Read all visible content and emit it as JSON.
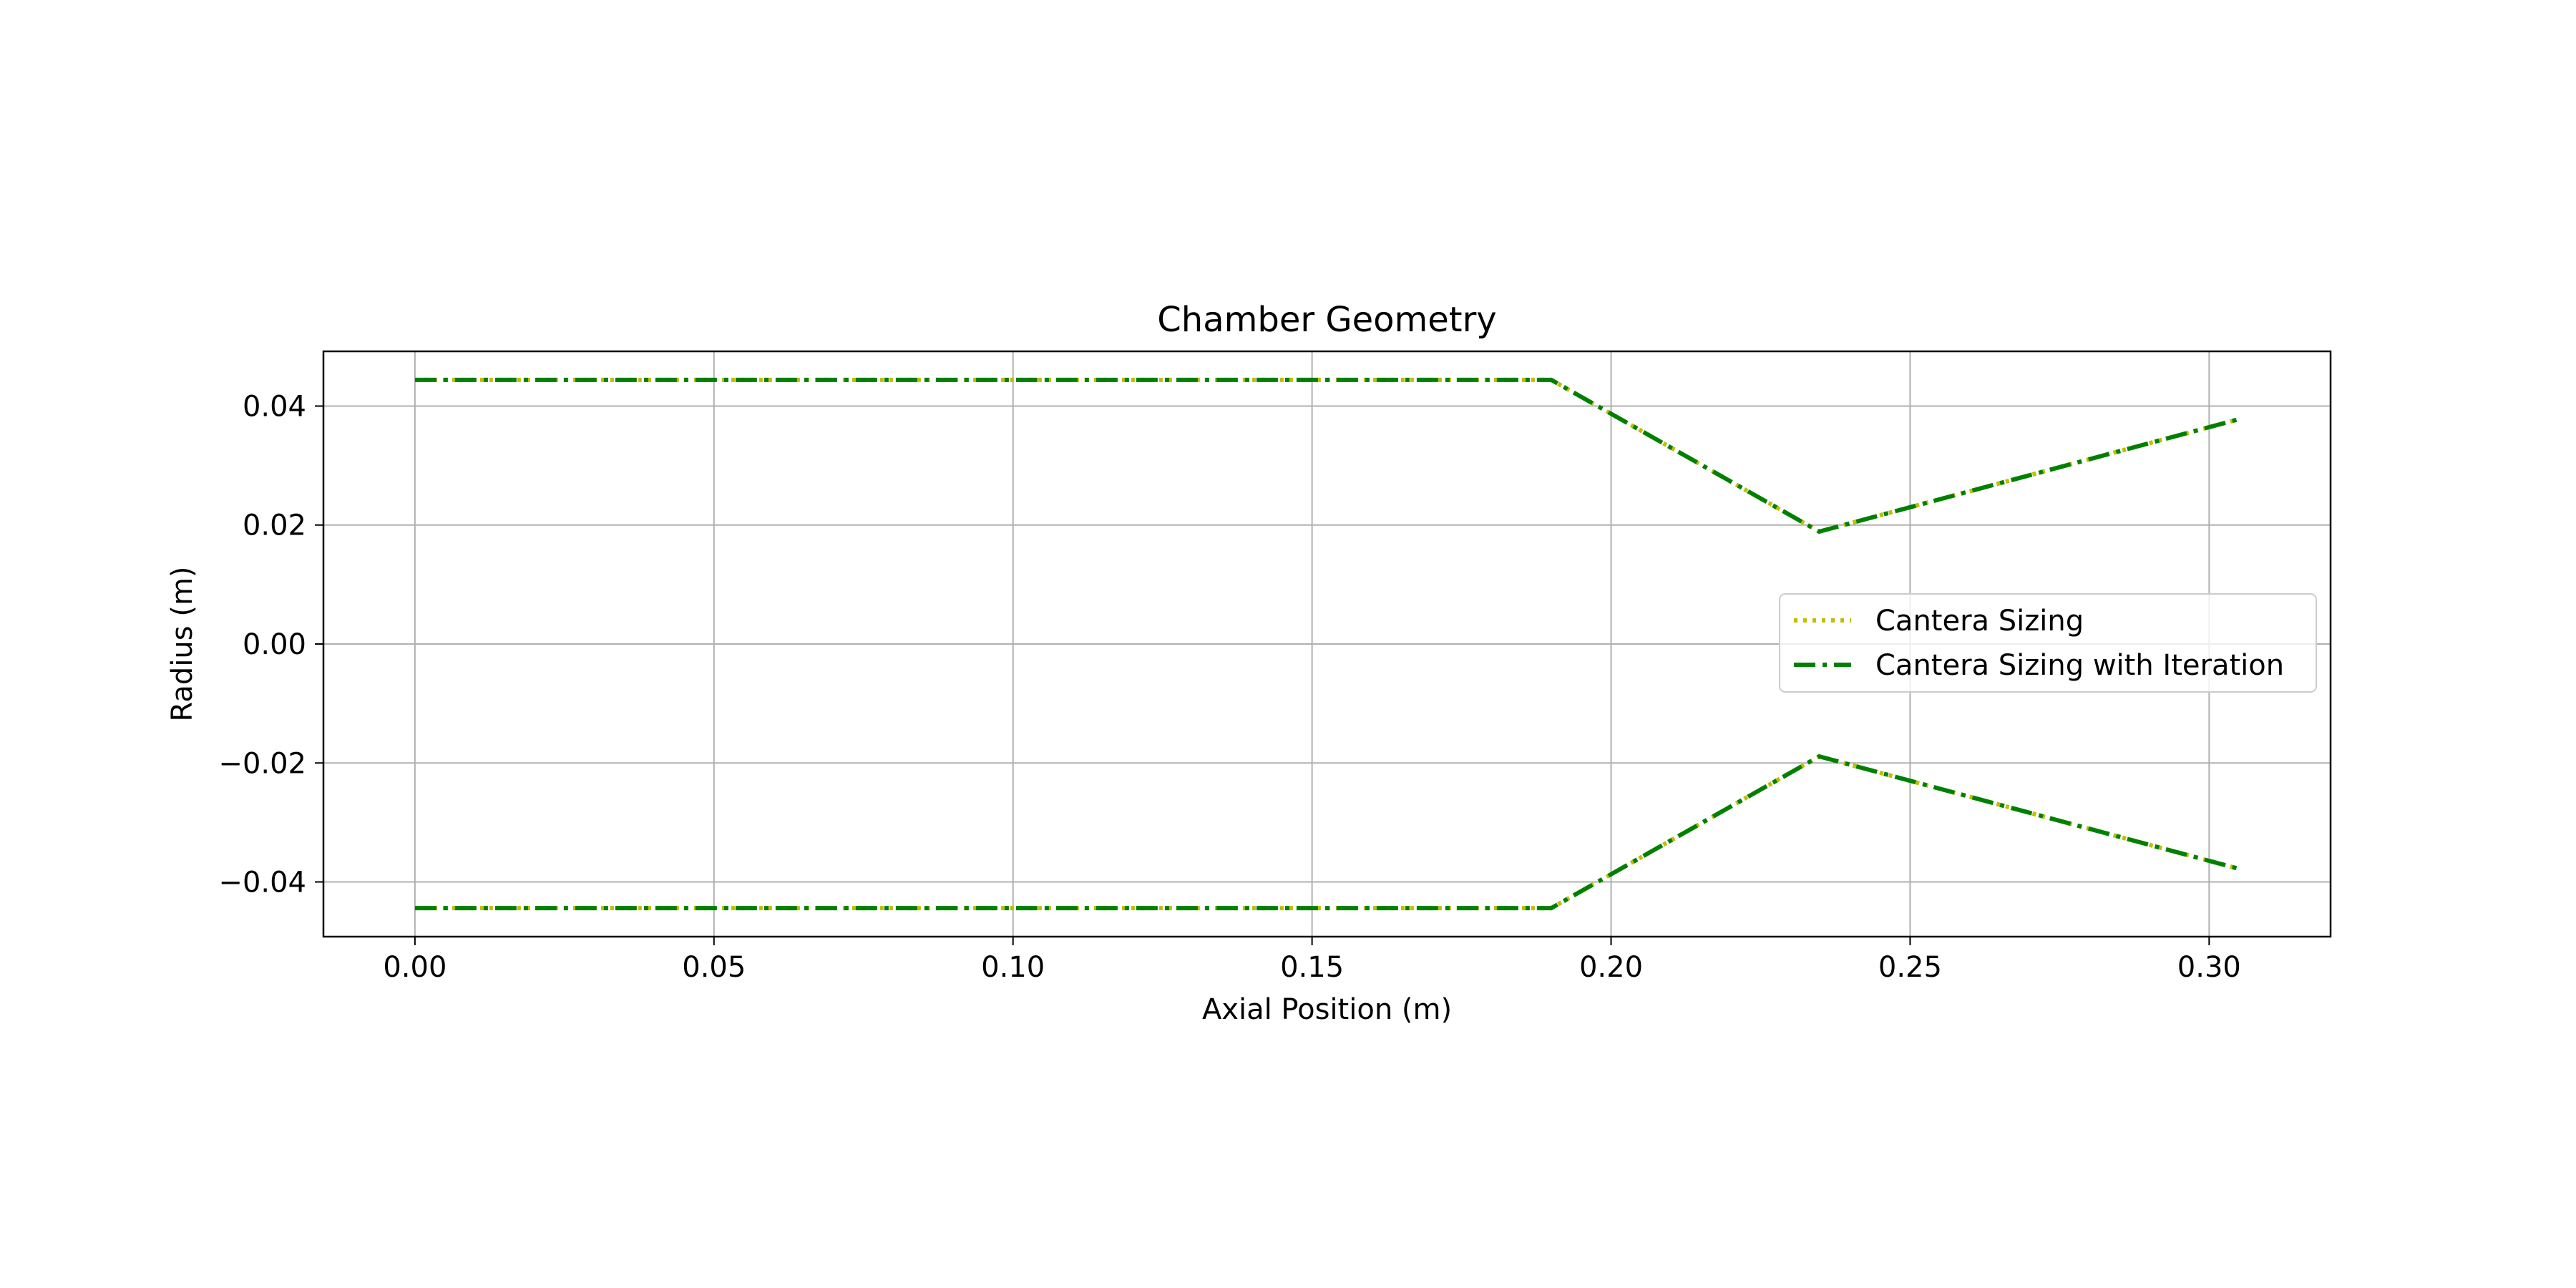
{
  "chart_data": {
    "type": "line",
    "title": "Chamber Geometry",
    "xlabel": "Axial Position (m)",
    "ylabel": "Radius (m)",
    "xlim": [
      -0.0153,
      0.3203
    ],
    "ylim": [
      -0.0492,
      0.0492
    ],
    "xticks": [
      0.0,
      0.05,
      0.1,
      0.15,
      0.2,
      0.25,
      0.3
    ],
    "xtick_labels": [
      "0.00",
      "0.05",
      "0.10",
      "0.15",
      "0.20",
      "0.25",
      "0.30"
    ],
    "yticks": [
      -0.04,
      -0.02,
      0.0,
      0.02,
      0.04
    ],
    "ytick_labels": [
      "−0.04",
      "−0.02",
      "0.00",
      "0.02",
      "0.04"
    ],
    "grid": true,
    "legend_position": "center-right",
    "series": [
      {
        "name": "Cantera Sizing",
        "color": "#bfbf00",
        "linestyle": "dotted",
        "upper": {
          "x": [
            0.0,
            0.19,
            0.2348,
            0.305
          ],
          "y": [
            0.0444,
            0.0444,
            0.0189,
            0.0378
          ]
        },
        "lower": {
          "x": [
            0.0,
            0.19,
            0.2348,
            0.305
          ],
          "y": [
            -0.0444,
            -0.0444,
            -0.0189,
            -0.0378
          ]
        }
      },
      {
        "name": "Cantera Sizing with Iteration",
        "color": "#008000",
        "linestyle": "dashdot",
        "upper": {
          "x": [
            0.0,
            0.19,
            0.2348,
            0.305
          ],
          "y": [
            0.0444,
            0.0444,
            0.0189,
            0.0378
          ]
        },
        "lower": {
          "x": [
            0.0,
            0.19,
            0.2348,
            0.305
          ],
          "y": [
            -0.0444,
            -0.0444,
            -0.0189,
            -0.0378
          ]
        }
      }
    ]
  }
}
